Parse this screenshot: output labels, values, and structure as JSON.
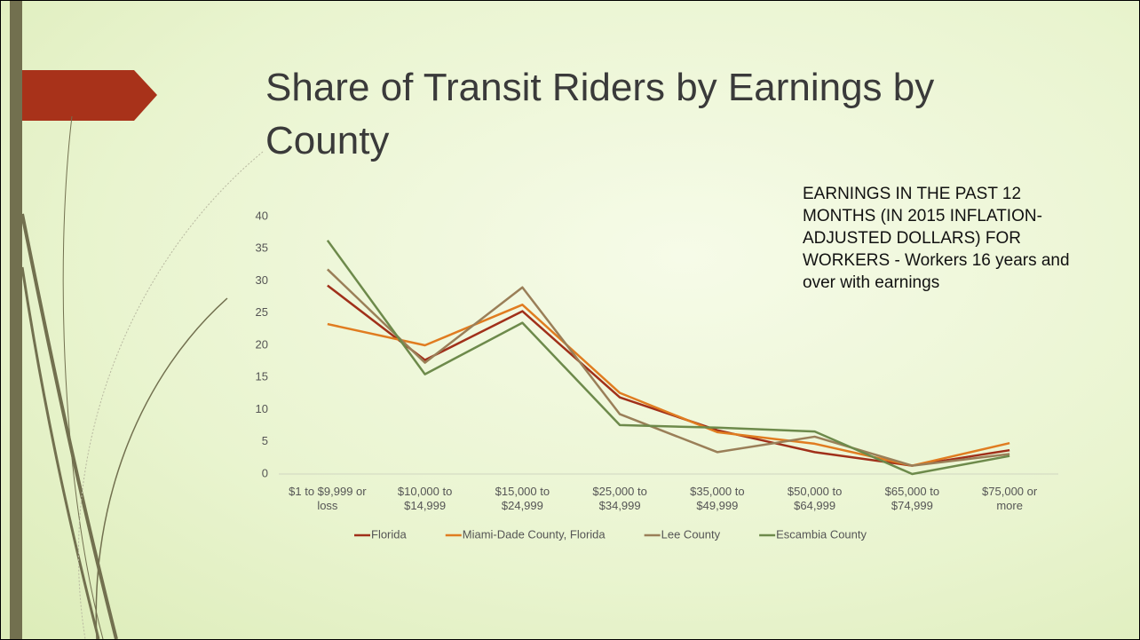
{
  "chart_data": {
    "type": "line",
    "title": "Share of Transit Riders by Earnings by County",
    "annotation": "EARNINGS IN THE PAST 12 MONTHS (IN 2015 INFLATION-ADJUSTED DOLLARS) FOR WORKERS - Workers 16 years and over with earnings",
    "categories": [
      "$1 to $9,999 or loss",
      "$10,000 to $14,999",
      "$15,000 to $24,999",
      "$25,000 to $34,999",
      "$35,000 to $49,999",
      "$50,000 to $64,999",
      "$65,000 to $74,999",
      "$75,000 or more"
    ],
    "series": [
      {
        "name": "Florida",
        "color": "#a0301a",
        "values": [
          29.3,
          17.7,
          25.3,
          11.9,
          6.8,
          3.4,
          1.3,
          3.7
        ]
      },
      {
        "name": "Miami-Dade County, Florida",
        "color": "#e07c20",
        "values": [
          23.3,
          20.0,
          26.3,
          12.6,
          6.5,
          4.7,
          1.3,
          4.8
        ]
      },
      {
        "name": "Lee County",
        "color": "#9a7f58",
        "values": [
          31.8,
          17.3,
          29.0,
          9.3,
          3.4,
          5.8,
          1.3,
          3.1
        ]
      },
      {
        "name": "Escambia County",
        "color": "#6d8a4b",
        "values": [
          36.3,
          15.5,
          23.5,
          7.6,
          7.2,
          6.6,
          0.0,
          2.8
        ]
      }
    ],
    "ylim": [
      0,
      40
    ],
    "yticks": [
      0,
      5,
      10,
      15,
      20,
      25,
      30,
      35,
      40
    ],
    "grid": false,
    "legend": "bottom"
  }
}
